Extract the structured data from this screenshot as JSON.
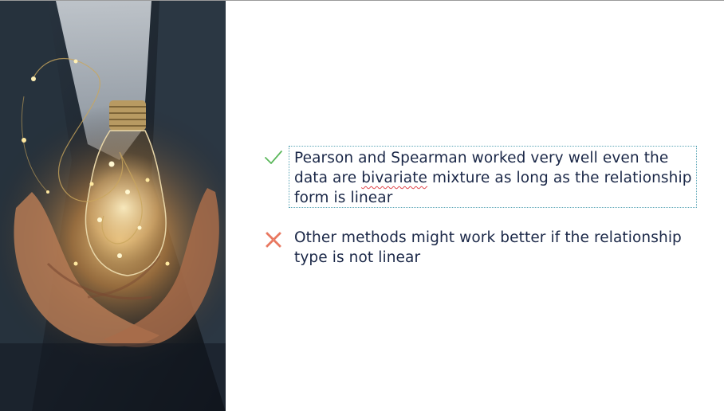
{
  "slide": {
    "image": {
      "icon": "lightbulb-photo-icon",
      "description_hidden": true
    },
    "bullets": [
      {
        "icon": "check-icon",
        "icon_color": "#5cb85c",
        "text_before": "Pearson and Spearman worked very well even the data are ",
        "text_flagged": "bivariate",
        "text_after": " mixture as long as the relationship form is linear"
      },
      {
        "icon": "cross-icon",
        "icon_color": "#e8765e",
        "text": "Other methods might work better if the relationship type is not linear"
      }
    ],
    "text_color": "#1a2747"
  }
}
